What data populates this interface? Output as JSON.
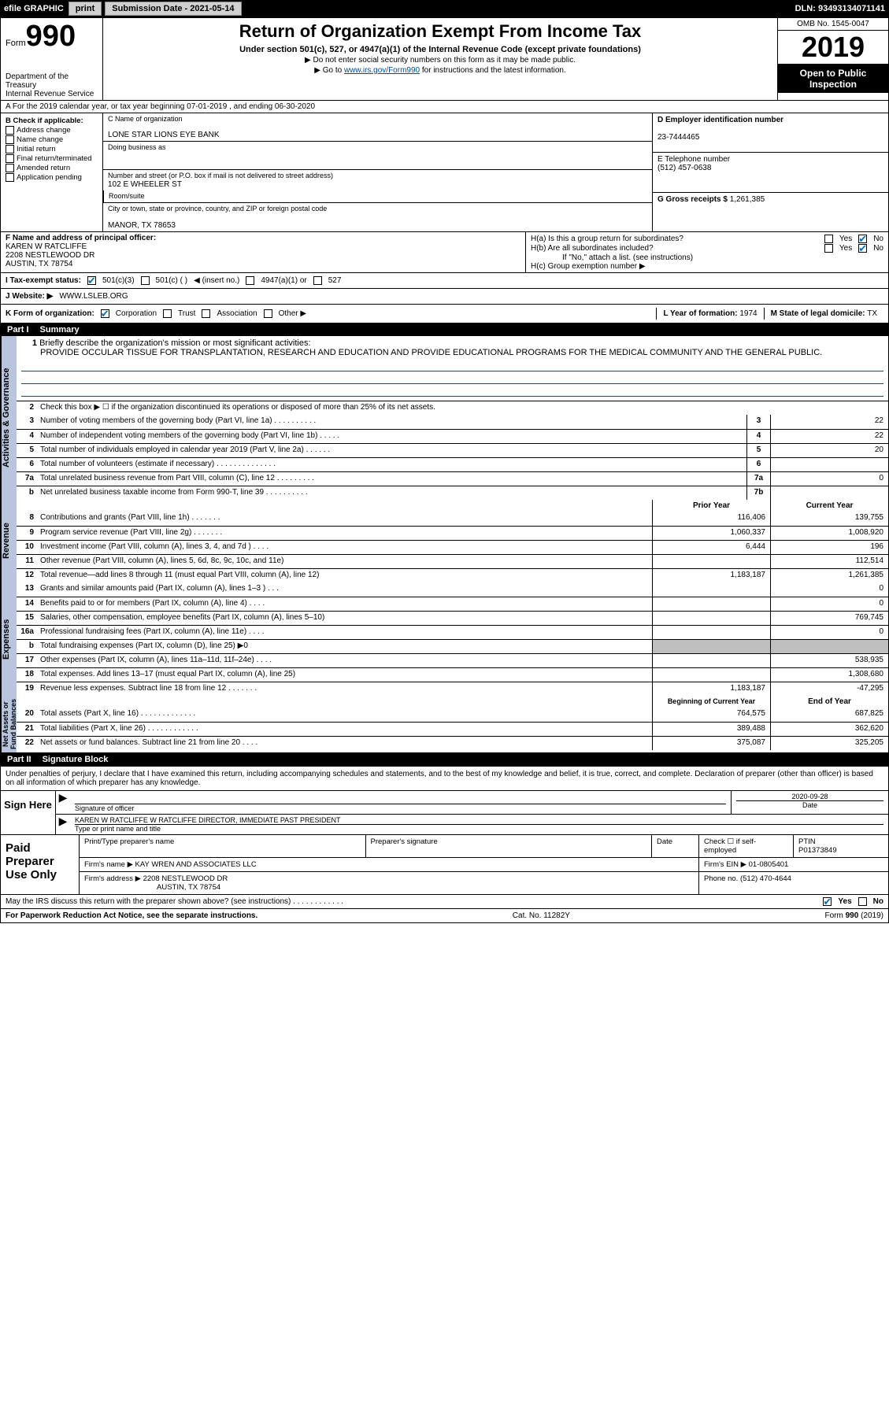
{
  "topbar": {
    "efile": "efile GRAPHIC",
    "print": "print",
    "subdate_lbl": "Submission Date - ",
    "subdate": "2021-05-14",
    "dln_lbl": "DLN: ",
    "dln": "93493134071141"
  },
  "header": {
    "form_word": "Form",
    "form_num": "990",
    "dept": "Department of the Treasury\nInternal Revenue Service",
    "title": "Return of Organization Exempt From Income Tax",
    "sub": "Under section 501(c), 527, or 4947(a)(1) of the Internal Revenue Code (except private foundations)",
    "sub2a": "▶ Do not enter social security numbers on this form as it may be made public.",
    "sub2b_pre": "▶ Go to ",
    "sub2b_link": "www.irs.gov/Form990",
    "sub2b_post": " for instructions and the latest information.",
    "omb": "OMB No. 1545-0047",
    "year": "2019",
    "otp": "Open to Public Inspection"
  },
  "rowA": "A For the 2019 calendar year, or tax year beginning 07-01-2019    , and ending 06-30-2020",
  "B": {
    "hdr": "B Check if applicable:",
    "opts": [
      "Address change",
      "Name change",
      "Initial return",
      "Final return/terminated",
      "Amended return",
      "Application pending"
    ]
  },
  "C": {
    "lbl_name": "C Name of organization",
    "name": "LONE STAR LIONS EYE BANK",
    "lbl_dba": "Doing business as",
    "lbl_addr": "Number and street (or P.O. box if mail is not delivered to street address)",
    "addr": "102 E WHEELER ST",
    "lbl_room": "Room/suite",
    "lbl_city": "City or town, state or province, country, and ZIP or foreign postal code",
    "city": "MANOR, TX  78653"
  },
  "D": {
    "lbl": "D Employer identification number",
    "val": "23-7444465"
  },
  "E": {
    "lbl": "E Telephone number",
    "val": "(512) 457-0638"
  },
  "G": {
    "lbl": "G Gross receipts $",
    "val": "1,261,385"
  },
  "F": {
    "lbl": "F  Name and address of principal officer:",
    "name": "KAREN W RATCLIFFE",
    "addr1": "2208 NESTLEWOOD DR",
    "addr2": "AUSTIN, TX  78754"
  },
  "H": {
    "a_lbl": "H(a)  Is this a group return for subordinates?",
    "b_lbl": "H(b)  Are all subordinates included?",
    "b_note": "If \"No,\" attach a list. (see instructions)",
    "c_lbl": "H(c)  Group exemption number ▶",
    "yes": "Yes",
    "no": "No"
  },
  "I": {
    "lbl": "I    Tax-exempt status:",
    "o1": "501(c)(3)",
    "o2": "501(c) (   )",
    "o2_note": "◀ (insert no.)",
    "o3": "4947(a)(1) or",
    "o4": "527"
  },
  "J": {
    "lbl": "J   Website: ▶",
    "val": "WWW.LSLEB.ORG"
  },
  "K": {
    "lbl": "K Form of organization:",
    "opts": [
      "Corporation",
      "Trust",
      "Association",
      "Other ▶"
    ],
    "L_lbl": "L Year of formation:",
    "L_val": "1974",
    "M_lbl": "M State of legal domicile:",
    "M_val": "TX"
  },
  "partI": {
    "num": "Part I",
    "title": "Summary"
  },
  "mission": {
    "ln": "1",
    "lbl": "Briefly describe the organization's mission or most significant activities:",
    "txt": "PROVIDE OCCULAR TISSUE FOR TRANSPLANTATION, RESEARCH AND EDUCATION AND PROVIDE EDUCATIONAL PROGRAMS FOR THE MEDICAL COMMUNITY AND THE GENERAL PUBLIC."
  },
  "line2": "Check this box ▶ ☐  if the organization discontinued its operations or disposed of more than 25% of its net assets.",
  "gov_lines": [
    {
      "n": "3",
      "t": "Number of voting members of the governing body (Part VI, line 1a)   .   .   .   .   .   .   .   .   .   .",
      "b": "3",
      "v": "22"
    },
    {
      "n": "4",
      "t": "Number of independent voting members of the governing body (Part VI, line 1b)   .   .   .   .   .",
      "b": "4",
      "v": "22"
    },
    {
      "n": "5",
      "t": "Total number of individuals employed in calendar year 2019 (Part V, line 2a)   .   .   .   .   .   .",
      "b": "5",
      "v": "20"
    },
    {
      "n": "6",
      "t": "Total number of volunteers (estimate if necessary)    .   .   .   .   .   .   .   .   .   .   .   .   .   .",
      "b": "6",
      "v": ""
    },
    {
      "n": "7a",
      "t": "Total unrelated business revenue from Part VIII, column (C), line 12   .   .   .   .   .   .   .   .   .",
      "b": "7a",
      "v": "0"
    },
    {
      "n": "b",
      "t": "Net unrelated business taxable income from Form 990-T, line 39    .   .   .   .   .   .   .   .   .   .",
      "b": "7b",
      "v": ""
    }
  ],
  "colhdr": {
    "py": "Prior Year",
    "cy": "Current Year"
  },
  "rev": [
    {
      "n": "8",
      "t": "Contributions and grants (Part VIII, line 1h)   .   .   .   .   .   .   .",
      "p": "116,406",
      "c": "139,755"
    },
    {
      "n": "9",
      "t": "Program service revenue (Part VIII, line 2g)   .   .   .   .   .   .   .",
      "p": "1,060,337",
      "c": "1,008,920"
    },
    {
      "n": "10",
      "t": "Investment income (Part VIII, column (A), lines 3, 4, and 7d )    .   .   .   .",
      "p": "6,444",
      "c": "196"
    },
    {
      "n": "11",
      "t": "Other revenue (Part VIII, column (A), lines 5, 6d, 8c, 9c, 10c, and 11e)",
      "p": "",
      "c": "112,514"
    },
    {
      "n": "12",
      "t": "Total revenue—add lines 8 through 11 (must equal Part VIII, column (A), line 12)",
      "p": "1,183,187",
      "c": "1,261,385"
    }
  ],
  "exp": [
    {
      "n": "13",
      "t": "Grants and similar amounts paid (Part IX, column (A), lines 1–3 )   .   .   .",
      "p": "",
      "c": "0"
    },
    {
      "n": "14",
      "t": "Benefits paid to or for members (Part IX, column (A), line 4)   .   .   .   .",
      "p": "",
      "c": "0"
    },
    {
      "n": "15",
      "t": "Salaries, other compensation, employee benefits (Part IX, column (A), lines 5–10)",
      "p": "",
      "c": "769,745"
    },
    {
      "n": "16a",
      "t": "Professional fundraising fees (Part IX, column (A), line 11e)   .   .   .   .",
      "p": "",
      "c": "0"
    },
    {
      "n": "b",
      "t": "Total fundraising expenses (Part IX, column (D), line 25) ▶0",
      "p": "shade",
      "c": "shade"
    },
    {
      "n": "17",
      "t": "Other expenses (Part IX, column (A), lines 11a–11d, 11f–24e)   .   .   .   .",
      "p": "",
      "c": "538,935"
    },
    {
      "n": "18",
      "t": "Total expenses. Add lines 13–17 (must equal Part IX, column (A), line 25)",
      "p": "",
      "c": "1,308,680"
    },
    {
      "n": "19",
      "t": "Revenue less expenses. Subtract line 18 from line 12   .   .   .   .   .   .   .",
      "p": "1,183,187",
      "c": "-47,295"
    }
  ],
  "colhdr2": {
    "b": "Beginning of Current Year",
    "e": "End of Year"
  },
  "na": [
    {
      "n": "20",
      "t": "Total assets (Part X, line 16)   .   .   .   .   .   .   .   .   .   .   .   .   .",
      "p": "764,575",
      "c": "687,825"
    },
    {
      "n": "21",
      "t": "Total liabilities (Part X, line 26)   .   .   .   .   .   .   .   .   .   .   .   .",
      "p": "389,488",
      "c": "362,620"
    },
    {
      "n": "22",
      "t": "Net assets or fund balances. Subtract line 21 from line 20   .   .   .   .",
      "p": "375,087",
      "c": "325,205"
    }
  ],
  "vtabs": {
    "gov": "Activities & Governance",
    "rev": "Revenue",
    "exp": "Expenses",
    "na": "Net Assets or\nFund Balances"
  },
  "partII": {
    "num": "Part II",
    "title": "Signature Block"
  },
  "sig_decl": "Under penalties of perjury, I declare that I have examined this return, including accompanying schedules and statements, and to the best of my knowledge and belief, it is true, correct, and complete. Declaration of preparer (other than officer) is based on all information of which preparer has any knowledge.",
  "sign": {
    "here": "Sign Here",
    "sig_of_officer": "Signature of officer",
    "date_lbl": "Date",
    "date": "2020-09-28",
    "name": "KAREN W RATCLIFFE W RATCLIFFE  DIRECTOR, IMMEDIATE PAST PRESIDENT",
    "name_lbl": "Type or print name and title"
  },
  "prep": {
    "left": "Paid Preparer Use Only",
    "h1": "Print/Type preparer's name",
    "h2": "Preparer's signature",
    "h3": "Date",
    "h4": "Check ☐ if self-employed",
    "h5_lbl": "PTIN",
    "h5": "P01373849",
    "firm_lbl": "Firm's name    ▶",
    "firm": "KAY WREN AND ASSOCIATES LLC",
    "ein_lbl": "Firm's EIN ▶",
    "ein": "01-0805401",
    "addr_lbl": "Firm's address ▶",
    "addr1": "2208 NESTLEWOOD DR",
    "addr2": "AUSTIN, TX  78754",
    "phone_lbl": "Phone no.",
    "phone": "(512) 470-4644"
  },
  "discuss": {
    "q": "May the IRS discuss this return with the preparer shown above? (see instructions)    .   .   .   .   .   .   .   .   .   .   .   .",
    "yes": "Yes",
    "no": "No"
  },
  "footer": {
    "l": "For Paperwork Reduction Act Notice, see the separate instructions.",
    "m": "Cat. No. 11282Y",
    "r": "Form 990 (2019)"
  }
}
